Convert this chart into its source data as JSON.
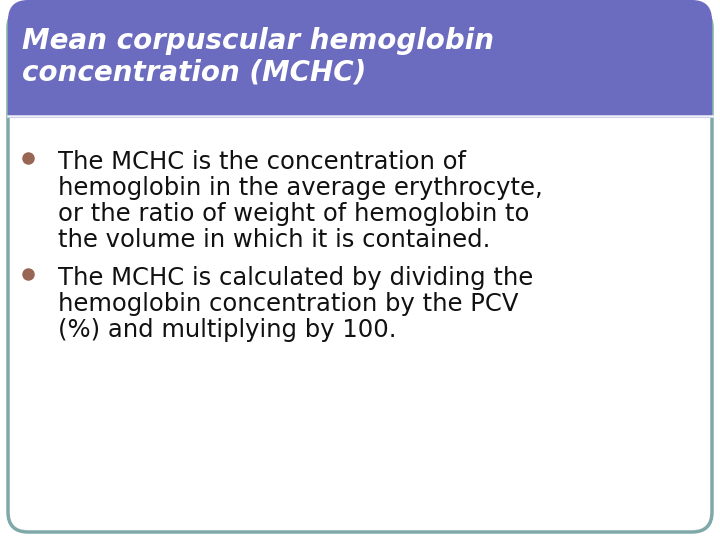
{
  "title_line1": "Mean corpuscular hemoglobin",
  "title_line2": "concentration (MCHC)",
  "title_bg_color": "#6b6bbf",
  "title_text_color": "#ffffff",
  "slide_bg_color": "#ffffff",
  "border_color": "#7fa8a8",
  "bullet_color": "#996655",
  "bullet1_lines": [
    "The MCHC is the concentration of",
    "hemoglobin in the average erythrocyte,",
    "or the ratio of weight of hemoglobin to",
    "the volume in which it is contained."
  ],
  "bullet2_lines": [
    "The MCHC is calculated by dividing the",
    "hemoglobin concentration by the PCV",
    "(%) and multiplying by 100."
  ],
  "body_text_color": "#111111",
  "font_size_title": 20,
  "font_size_body": 17.5,
  "separator_color": "#aaaadd"
}
